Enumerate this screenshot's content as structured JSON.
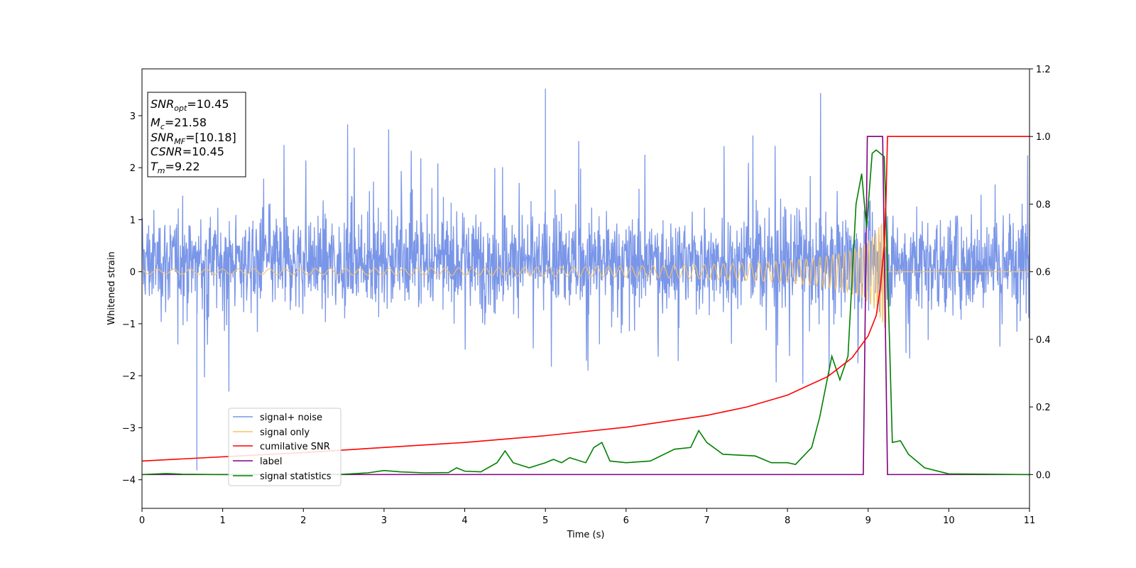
{
  "chart_data": {
    "type": "line",
    "xlabel": "Time (s)",
    "ylabel": "Whitened strain",
    "xlim": [
      0,
      11
    ],
    "ylim": [
      -4.55,
      3.9
    ],
    "ylim_right": [
      -0.1,
      1.2
    ],
    "xticks": [
      "0",
      "1",
      "2",
      "3",
      "4",
      "5",
      "6",
      "7",
      "8",
      "9",
      "10",
      "11"
    ],
    "yticks_left": [
      "−4",
      "−3",
      "−2",
      "−1",
      "0",
      "1",
      "2",
      "3"
    ],
    "yticks_right": [
      "0.0",
      "0.2",
      "0.4",
      "0.6",
      "0.8",
      "1.0",
      "1.2"
    ],
    "grid": false,
    "legend_position": "lower-left",
    "info_box": {
      "snr_opt": {
        "base": "SNR",
        "sub": "opt",
        "value": "=10.45"
      },
      "mc": {
        "base": "M",
        "sub": "c",
        "value": "=21.58"
      },
      "snr_mf": {
        "base": "SNR",
        "sub": "MF",
        "value": "=[10.18]"
      },
      "csnr": {
        "base": "CSNR",
        "value": "=10.45"
      },
      "tm": {
        "base": "T",
        "sub": "m",
        "value": "=9.22"
      }
    },
    "series": [
      {
        "name": "signal+ noise",
        "axis": "left",
        "color": "#7a96e8",
        "description_values": {
          "band_range": [
            -1.6,
            1.8
          ],
          "typical_peak_range": [
            -2.8,
            3.5
          ],
          "t_max_spike": 5.0,
          "y_max_spike": 3.52,
          "t_min_spike": 0.68,
          "y_min_spike": -3.82
        }
      },
      {
        "name": "signal only",
        "axis": "left",
        "color": "#f5c26b",
        "chirp": {
          "t_start": 0,
          "t_merge": 9.22,
          "peak_amplitude": 1.3,
          "post_merger_amplitude": 0
        }
      },
      {
        "name": "cumilative SNR",
        "axis": "right",
        "color": "#ff0000",
        "points": [
          [
            0,
            0.04
          ],
          [
            2,
            0.065
          ],
          [
            4,
            0.095
          ],
          [
            5,
            0.115
          ],
          [
            6,
            0.14
          ],
          [
            7,
            0.175
          ],
          [
            7.5,
            0.2
          ],
          [
            8,
            0.235
          ],
          [
            8.5,
            0.29
          ],
          [
            8.8,
            0.345
          ],
          [
            9.0,
            0.41
          ],
          [
            9.1,
            0.47
          ],
          [
            9.15,
            0.55
          ],
          [
            9.2,
            0.68
          ],
          [
            9.22,
            0.8
          ],
          [
            9.24,
            1.0
          ],
          [
            11,
            1.0
          ]
        ]
      },
      {
        "name": "label",
        "axis": "right",
        "color": "#800080",
        "points": [
          [
            0,
            0
          ],
          [
            8.94,
            0
          ],
          [
            8.99,
            1.0
          ],
          [
            9.18,
            1.0
          ],
          [
            9.24,
            0
          ],
          [
            11,
            0
          ]
        ]
      },
      {
        "name": "signal statistics",
        "axis": "right",
        "color": "#008000",
        "points": [
          [
            0,
            0.0
          ],
          [
            0.3,
            0.003
          ],
          [
            0.5,
            0.001
          ],
          [
            1,
            0.0
          ],
          [
            2,
            0.0
          ],
          [
            2.5,
            0.001
          ],
          [
            2.8,
            0.005
          ],
          [
            3.0,
            0.012
          ],
          [
            3.2,
            0.008
          ],
          [
            3.5,
            0.005
          ],
          [
            3.8,
            0.006
          ],
          [
            3.9,
            0.02
          ],
          [
            4.0,
            0.01
          ],
          [
            4.2,
            0.008
          ],
          [
            4.4,
            0.035
          ],
          [
            4.5,
            0.07
          ],
          [
            4.6,
            0.035
          ],
          [
            4.8,
            0.02
          ],
          [
            5.0,
            0.035
          ],
          [
            5.1,
            0.045
          ],
          [
            5.2,
            0.035
          ],
          [
            5.3,
            0.05
          ],
          [
            5.5,
            0.035
          ],
          [
            5.6,
            0.08
          ],
          [
            5.7,
            0.095
          ],
          [
            5.8,
            0.04
          ],
          [
            6.0,
            0.035
          ],
          [
            6.3,
            0.04
          ],
          [
            6.6,
            0.075
          ],
          [
            6.8,
            0.08
          ],
          [
            6.9,
            0.13
          ],
          [
            7.0,
            0.095
          ],
          [
            7.2,
            0.06
          ],
          [
            7.6,
            0.055
          ],
          [
            7.8,
            0.035
          ],
          [
            8.0,
            0.035
          ],
          [
            8.1,
            0.03
          ],
          [
            8.3,
            0.08
          ],
          [
            8.4,
            0.17
          ],
          [
            8.55,
            0.35
          ],
          [
            8.65,
            0.28
          ],
          [
            8.75,
            0.35
          ],
          [
            8.85,
            0.8
          ],
          [
            8.92,
            0.89
          ],
          [
            8.98,
            0.73
          ],
          [
            9.05,
            0.95
          ],
          [
            9.1,
            0.96
          ],
          [
            9.2,
            0.94
          ],
          [
            9.25,
            0.52
          ],
          [
            9.3,
            0.095
          ],
          [
            9.4,
            0.1
          ],
          [
            9.5,
            0.06
          ],
          [
            9.7,
            0.02
          ],
          [
            10.0,
            0.002
          ],
          [
            11,
            0.0
          ]
        ]
      }
    ]
  }
}
